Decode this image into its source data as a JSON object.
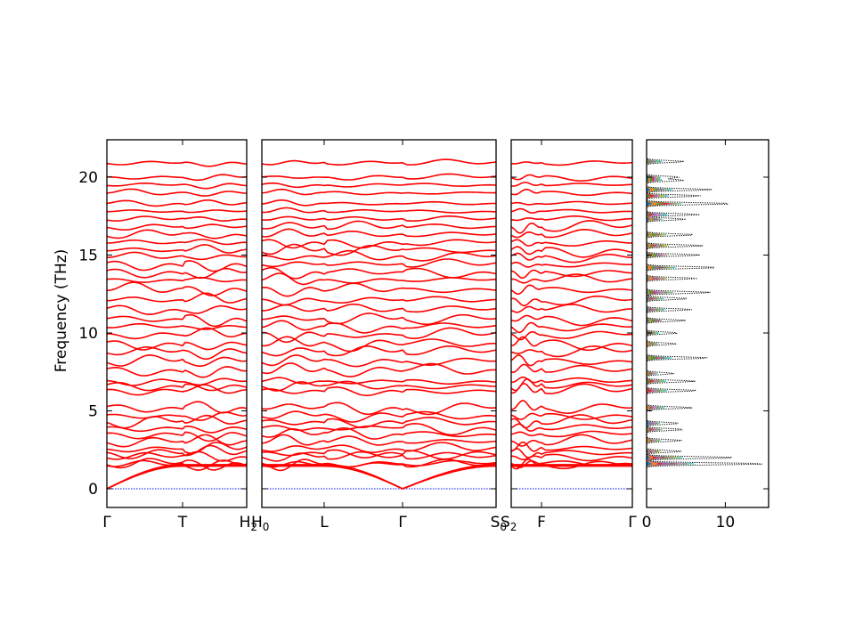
{
  "chart_data": {
    "type": "line",
    "title": "",
    "ylabel": "Frequency (THz)",
    "ylim": [
      -1.2,
      22.4
    ],
    "y_ticks": [
      0,
      5,
      10,
      15,
      20
    ],
    "band_color": "#ff0000",
    "zero_line_color": "#0000ff",
    "panels": [
      {
        "segments": [
          "Γ–T",
          "T–H2"
        ],
        "x_ticks": [
          {
            "main": "Γ",
            "sub": ""
          },
          {
            "main": "T",
            "sub": ""
          },
          {
            "main": "H",
            "sub": "2"
          }
        ]
      },
      {
        "segments": [
          "H0–L",
          "L–Γ",
          "Γ–S0"
        ],
        "x_ticks": [
          {
            "main": "H",
            "sub": "0"
          },
          {
            "main": "L",
            "sub": ""
          },
          {
            "main": "Γ",
            "sub": ""
          },
          {
            "main": "S",
            "sub": "0"
          }
        ]
      },
      {
        "segments": [
          "S2–F",
          "F–Γ"
        ],
        "x_ticks": [
          {
            "main": "S",
            "sub": "2"
          },
          {
            "main": "F",
            "sub": ""
          },
          {
            "main": "Γ",
            "sub": ""
          }
        ]
      }
    ],
    "band_frequencies_at_gamma_thz": [
      0,
      0,
      0,
      1.55,
      1.62,
      2.05,
      2.3,
      2.55,
      3.0,
      3.5,
      3.9,
      4.3,
      4.7,
      5.2,
      6.3,
      6.6,
      6.9,
      7.6,
      8.2,
      8.8,
      9.3,
      9.9,
      10.4,
      10.9,
      11.5,
      12.1,
      12.8,
      13.4,
      13.9,
      14.4,
      14.9,
      15.3,
      15.8,
      16.3,
      16.8,
      17.3,
      17.8,
      18.3,
      19.0,
      19.5,
      20.0,
      20.9
    ],
    "dos": {
      "xlim": [
        0,
        15.5
      ],
      "x_ticks": [
        0,
        10
      ],
      "total_color": "#000000",
      "partial_colors": [
        "#1f77b4",
        "#ff7f0e",
        "#2ca02c",
        "#d62728",
        "#9467bd",
        "#8c564b",
        "#e377c2",
        "#7f7f7f",
        "#bcbd22",
        "#17becf"
      ],
      "peaks": [
        {
          "f": 1.6,
          "total": 15.2
        },
        {
          "f": 2.0,
          "total": 11.5
        },
        {
          "f": 2.4,
          "total": 4.5
        },
        {
          "f": 3.1,
          "total": 4.5
        },
        {
          "f": 3.8,
          "total": 4.8
        },
        {
          "f": 4.2,
          "total": 4.2
        },
        {
          "f": 5.2,
          "total": 5.8
        },
        {
          "f": 6.3,
          "total": 6.5
        },
        {
          "f": 6.9,
          "total": 6.2
        },
        {
          "f": 7.4,
          "total": 3.5
        },
        {
          "f": 8.4,
          "total": 8.0
        },
        {
          "f": 9.3,
          "total": 3.8
        },
        {
          "f": 10.0,
          "total": 4.0
        },
        {
          "f": 10.8,
          "total": 5.0
        },
        {
          "f": 11.5,
          "total": 5.8
        },
        {
          "f": 12.2,
          "total": 5.4
        },
        {
          "f": 12.6,
          "total": 8.3
        },
        {
          "f": 13.5,
          "total": 6.5
        },
        {
          "f": 14.2,
          "total": 9.2
        },
        {
          "f": 15.0,
          "total": 6.8
        },
        {
          "f": 15.6,
          "total": 7.2
        },
        {
          "f": 16.3,
          "total": 6.2
        },
        {
          "f": 17.3,
          "total": 5.0
        },
        {
          "f": 17.6,
          "total": 6.8
        },
        {
          "f": 18.3,
          "total": 11.0
        },
        {
          "f": 18.8,
          "total": 7.0
        },
        {
          "f": 19.2,
          "total": 8.3
        },
        {
          "f": 19.8,
          "total": 4.8
        },
        {
          "f": 20.0,
          "total": 4.2
        },
        {
          "f": 21.0,
          "total": 4.8
        }
      ]
    }
  }
}
